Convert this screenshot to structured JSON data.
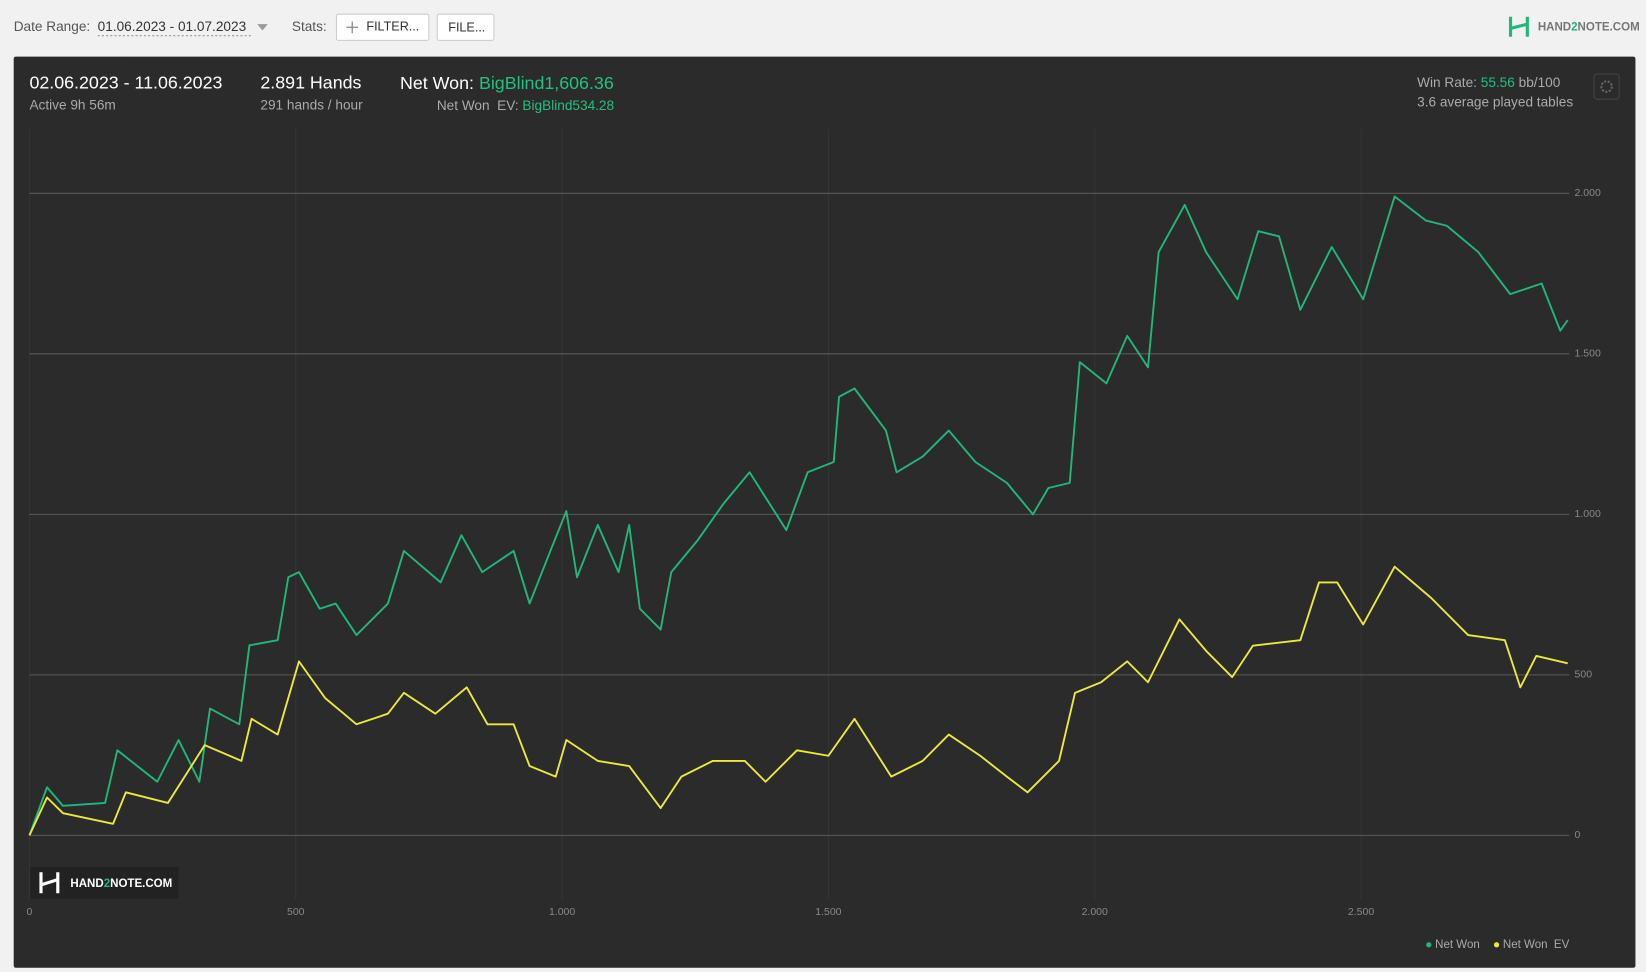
{
  "toolbar": {
    "date_range_label": "Date Range:",
    "date_range": "01.06.2023 - 01.07.2023",
    "stats_label": "Stats:",
    "filter_button": "FILTER...",
    "file_button": "FILE...",
    "logo": [
      "HAND",
      "2",
      "NOTE.COM"
    ]
  },
  "summary": {
    "period": "02.06.2023 - 11.06.2023",
    "active": "Active 9h 56m",
    "hands": "2.891 Hands",
    "hands_per_hour": "291 hands / hour",
    "net_won_label": "Net Won:",
    "net_won": "BigBlind1,606.36",
    "net_won_ev_label": "Net Won  EV:",
    "net_won_ev": "BigBlind534.28",
    "win_rate_label": "Win Rate:",
    "win_rate": "55.56",
    "win_rate_unit": "bb/100",
    "tables": "3.6 average played tables"
  },
  "watermark": [
    "HAND",
    "2",
    "NOTE.COM"
  ],
  "chart_data": {
    "type": "line",
    "xlim": [
      0,
      2891
    ],
    "ylim": [
      -200,
      2200
    ],
    "xticks": [
      0,
      500,
      {
        "value": 1000,
        "label": "1.000"
      },
      {
        "value": 1500,
        "label": "1.500"
      },
      {
        "value": 2000,
        "label": "2.000"
      },
      {
        "value": 2500,
        "label": "2.500"
      }
    ],
    "yticks": [
      0,
      500,
      {
        "value": 1000,
        "label": "1.000"
      },
      {
        "value": 1500,
        "label": "1.500"
      },
      {
        "value": 2000,
        "label": "2.000"
      }
    ],
    "grid": true,
    "legend": "bottom-right",
    "series": [
      {
        "name": "Net Won",
        "color": "#22b77a",
        "x": [
          0,
          33,
          63,
          142,
          165,
          240,
          280,
          319,
          339,
          394,
          413,
          466,
          486,
          506,
          545,
          575,
          614,
          673,
          703,
          772,
          811,
          850,
          909,
          939,
          978,
          1008,
          1028,
          1067,
          1106,
          1126,
          1146,
          1185,
          1205,
          1254,
          1303,
          1352,
          1421,
          1461,
          1510,
          1520,
          1549,
          1608,
          1628,
          1677,
          1726,
          1776,
          1835,
          1884,
          1913,
          1953,
          1972,
          2022,
          2061,
          2100,
          2120,
          2169,
          2209,
          2268,
          2307,
          2346,
          2386,
          2445,
          2504,
          2563,
          2622,
          2661,
          2720,
          2780,
          2839,
          2874,
          2888
        ],
        "values": [
          0,
          150,
          92,
          101,
          265,
          167,
          297,
          167,
          395,
          346,
          592,
          608,
          804,
          820,
          706,
          722,
          624,
          722,
          886,
          788,
          935,
          820,
          886,
          722,
          886,
          1010,
          804,
          967,
          820,
          967,
          706,
          641,
          820,
          918,
          1033,
          1131,
          951,
          1131,
          1163,
          1366,
          1392,
          1261,
          1131,
          1180,
          1261,
          1163,
          1098,
          1000,
          1082,
          1098,
          1474,
          1408,
          1556,
          1458,
          1817,
          1964,
          1817,
          1670,
          1882,
          1866,
          1637,
          1833,
          1670,
          1990,
          1915,
          1899,
          1817,
          1686,
          1719,
          1572,
          1605
        ]
      },
      {
        "name": "Net Won  EV",
        "color": "#eee83c",
        "x": [
          0,
          33,
          63,
          157,
          181,
          260,
          329,
          398,
          417,
          466,
          506,
          555,
          614,
          673,
          703,
          762,
          821,
          860,
          909,
          939,
          988,
          1008,
          1067,
          1126,
          1185,
          1224,
          1283,
          1343,
          1382,
          1441,
          1500,
          1549,
          1618,
          1677,
          1726,
          1785,
          1835,
          1874,
          1933,
          1963,
          2012,
          2061,
          2100,
          2159,
          2209,
          2258,
          2297,
          2386,
          2421,
          2455,
          2504,
          2563,
          2632,
          2701,
          2770,
          2799,
          2829,
          2888
        ],
        "values": [
          0,
          118,
          69,
          36,
          134,
          101,
          281,
          232,
          363,
          314,
          542,
          428,
          346,
          379,
          444,
          379,
          461,
          346,
          346,
          216,
          183,
          297,
          232,
          216,
          85,
          183,
          232,
          232,
          167,
          265,
          248,
          363,
          183,
          232,
          314,
          248,
          183,
          134,
          232,
          444,
          477,
          542,
          477,
          673,
          575,
          493,
          591,
          608,
          788,
          788,
          657,
          837,
          739,
          624,
          608,
          461,
          559,
          536
        ]
      }
    ]
  }
}
